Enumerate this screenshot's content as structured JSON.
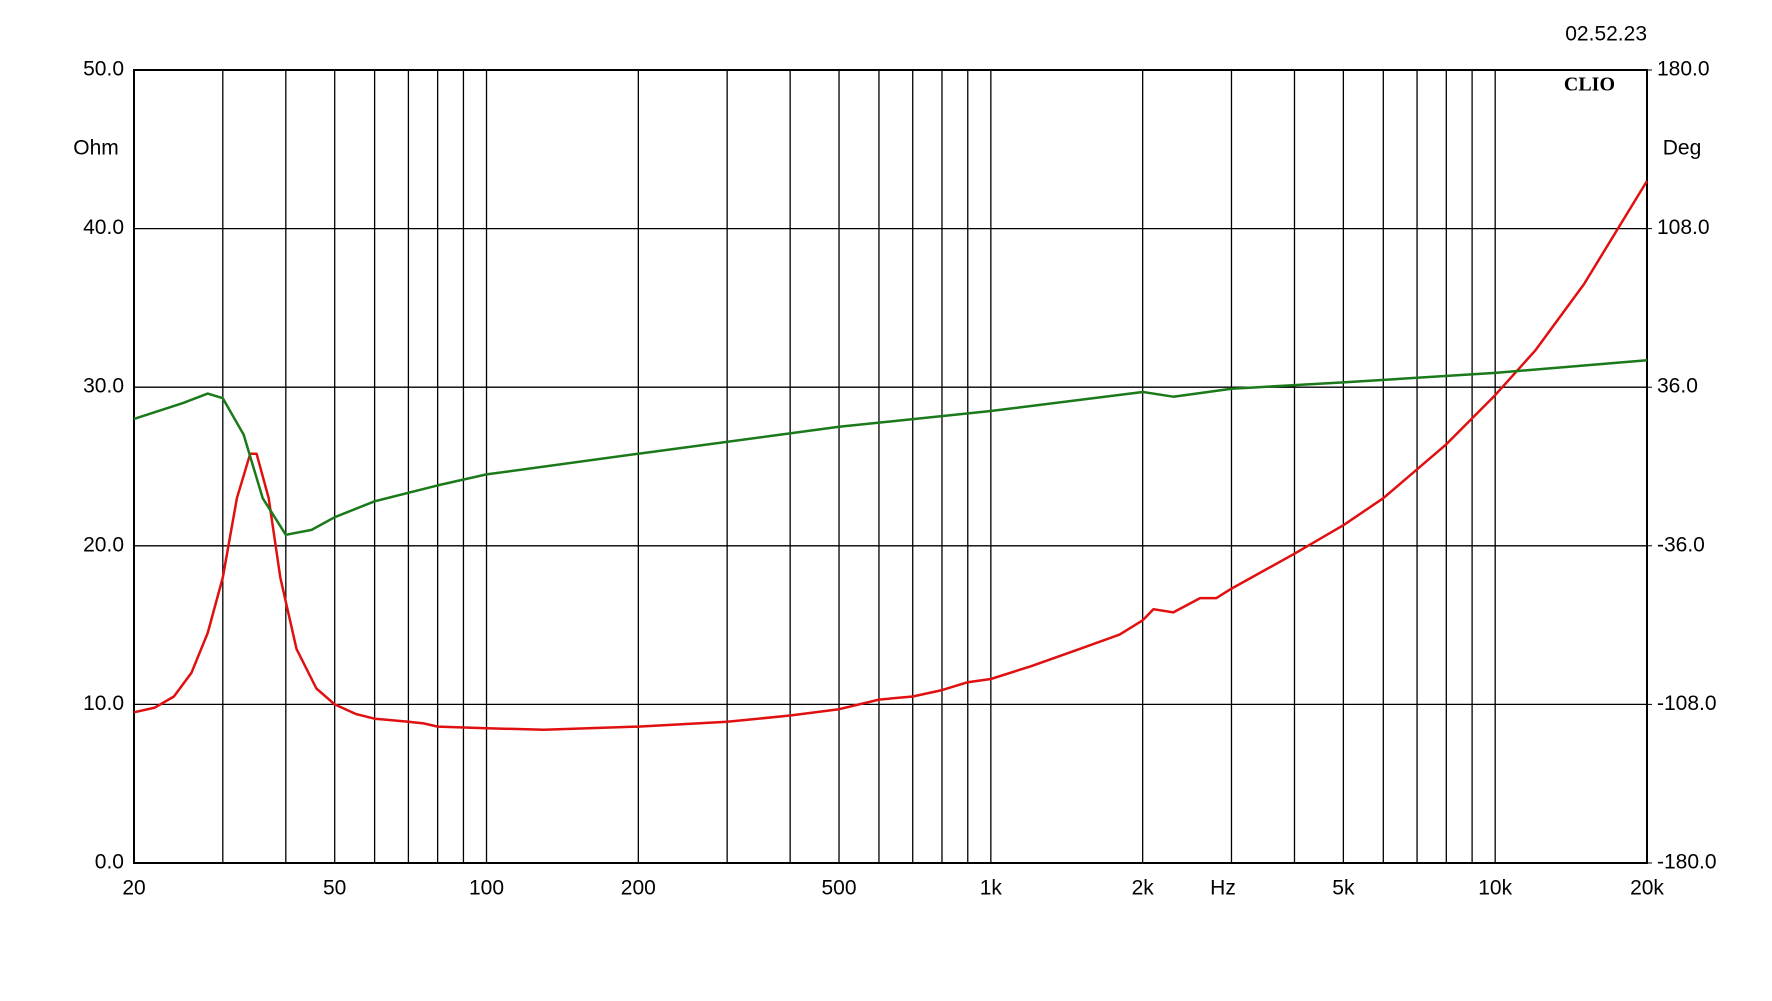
{
  "chart_data": {
    "type": "line",
    "timestamp": "02.52.23",
    "brand": "CLIO",
    "y_label": "Ohm",
    "y2_label": "Deg",
    "x_label": "Hz",
    "xscale": "log",
    "xlim": [
      20,
      20000
    ],
    "xticks": [
      {
        "value": 20,
        "label": "20"
      },
      {
        "value": 50,
        "label": "50"
      },
      {
        "value": 100,
        "label": "100"
      },
      {
        "value": 200,
        "label": "200"
      },
      {
        "value": 500,
        "label": "500"
      },
      {
        "value": 1000,
        "label": "1k"
      },
      {
        "value": 2000,
        "label": "2k"
      },
      {
        "value": 5000,
        "label": "5k"
      },
      {
        "value": 10000,
        "label": "10k"
      },
      {
        "value": 20000,
        "label": "20k"
      }
    ],
    "xminor": [
      30,
      40,
      60,
      70,
      80,
      90,
      300,
      400,
      600,
      700,
      800,
      900,
      3000,
      4000,
      6000,
      7000,
      8000,
      9000
    ],
    "ylim": [
      0,
      50
    ],
    "yticks": [
      {
        "value": 0,
        "label": "0.0"
      },
      {
        "value": 10,
        "label": "10.0"
      },
      {
        "value": 20,
        "label": "20.0"
      },
      {
        "value": 30,
        "label": "30.0"
      },
      {
        "value": 40,
        "label": "40.0"
      },
      {
        "value": 50,
        "label": "50.0"
      }
    ],
    "y2lim": [
      -180,
      180
    ],
    "y2ticks": [
      {
        "value": -180,
        "label": "-180.0"
      },
      {
        "value": -108,
        "label": "-108.0"
      },
      {
        "value": -36,
        "label": "-36.0"
      },
      {
        "value": 36,
        "label": "36.0"
      },
      {
        "value": 108,
        "label": "108.0"
      },
      {
        "value": 180,
        "label": "180.0"
      }
    ],
    "grid": true,
    "series": [
      {
        "color": "#e01010",
        "x": [
          20,
          22,
          24,
          26,
          28,
          30,
          32,
          34,
          35,
          37,
          39,
          42,
          46,
          50,
          55,
          60,
          70,
          75,
          80,
          100,
          130,
          200,
          300,
          400,
          500,
          600,
          700,
          800,
          900,
          1000,
          1200,
          1500,
          1800,
          2000,
          2100,
          2300,
          2600,
          2800,
          3000,
          4000,
          5000,
          6000,
          8000,
          10000,
          12000,
          15000,
          20000
        ],
        "values": [
          9.5,
          9.8,
          10.5,
          12,
          14.5,
          18,
          23,
          25.8,
          25.8,
          23,
          18,
          13.5,
          11,
          10,
          9.4,
          9.1,
          8.9,
          8.8,
          8.6,
          8.5,
          8.4,
          8.6,
          8.9,
          9.3,
          9.7,
          10.3,
          10.5,
          10.9,
          11.4,
          11.6,
          12.4,
          13.5,
          14.4,
          15.3,
          16.0,
          15.8,
          16.7,
          16.7,
          17.3,
          19.5,
          21.3,
          23,
          26.4,
          29.5,
          32.3,
          36.5,
          43
        ]
      },
      {
        "color": "#1a7a1a",
        "axis": "y2",
        "x": [
          20,
          25,
          28,
          30,
          33,
          36,
          40,
          45,
          50,
          60,
          80,
          100,
          200,
          500,
          1000,
          2000,
          2300,
          3000,
          5000,
          10000,
          20000
        ],
        "values": [
          21.6,
          28.8,
          33.1,
          31,
          14.4,
          -14.4,
          -31,
          -28.8,
          -23,
          -15.8,
          -8.6,
          -3.6,
          5.8,
          18,
          25.2,
          33.8,
          31.7,
          35.3,
          38.2,
          42.5,
          48.2
        ]
      }
    ]
  }
}
